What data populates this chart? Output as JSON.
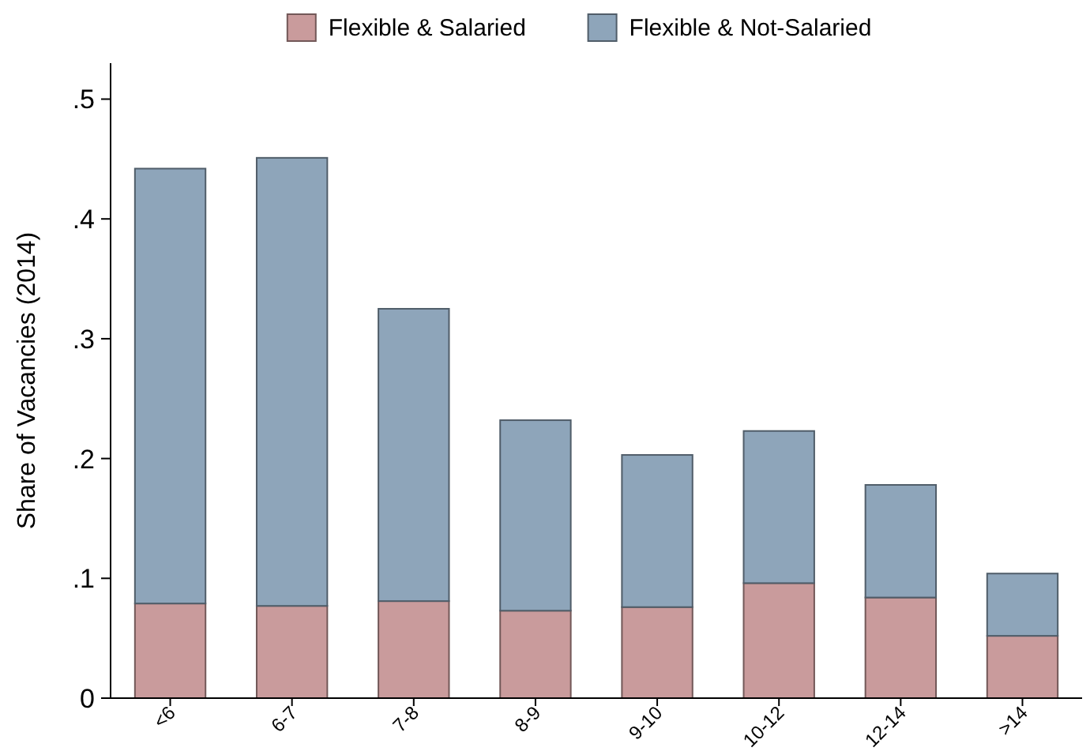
{
  "chart_data": {
    "type": "bar",
    "stacked": true,
    "ylabel": "Share of Vacancies (2014)",
    "categories": [
      "<6",
      "6-7",
      "7-8",
      "8-9",
      "9-10",
      "10-12",
      "12-14",
      ">14"
    ],
    "series": [
      {
        "name": "Flexible & Salaried",
        "color": "#c99b9c",
        "values": [
          0.079,
          0.077,
          0.081,
          0.073,
          0.076,
          0.096,
          0.084,
          0.052
        ]
      },
      {
        "name": "Flexible & Not-Salaried",
        "color": "#8ea5ba",
        "values": [
          0.363,
          0.374,
          0.244,
          0.159,
          0.127,
          0.127,
          0.094,
          0.052
        ]
      }
    ],
    "ylim": [
      0,
      0.53
    ],
    "yticks": [
      0,
      {
        "value": 0.1,
        "label": ".1"
      },
      {
        "value": 0.2,
        "label": ".2"
      },
      {
        "value": 0.3,
        "label": ".3"
      },
      {
        "value": 0.4,
        "label": ".4"
      },
      {
        "value": 0.5,
        "label": ".5"
      }
    ],
    "grid": false,
    "legend": "top"
  }
}
